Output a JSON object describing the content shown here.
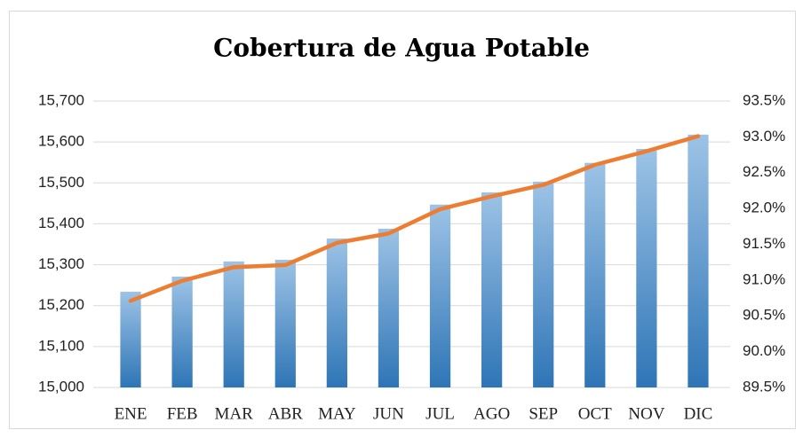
{
  "chart_data": {
    "type": "bar_line",
    "title": "Cobertura de Agua Potable",
    "categories": [
      "ENE",
      "FEB",
      "MAR",
      "ABR",
      "MAY",
      "JUN",
      "JUL",
      "AGO",
      "SEP",
      "OCT",
      "NOV",
      "DIC"
    ],
    "series": [
      {
        "type": "bar",
        "color": "#2e75b6",
        "values": [
          15234,
          15271,
          15308,
          15312,
          15364,
          15388,
          15447,
          15477,
          15503,
          15549,
          15583,
          15618
        ]
      },
      {
        "type": "line",
        "axis": "y2",
        "color": "#ed7d31",
        "values": [
          90.71,
          90.99,
          91.18,
          91.21,
          91.52,
          91.65,
          91.99,
          92.17,
          92.33,
          92.61,
          92.8,
          93.01
        ]
      }
    ],
    "ylim": [
      15000,
      15700
    ],
    "yticks": [
      {
        "value": 15000,
        "label": "15,000"
      },
      {
        "value": 15100,
        "label": "15,100"
      },
      {
        "value": 15200,
        "label": "15,200"
      },
      {
        "value": 15300,
        "label": "15,300"
      },
      {
        "value": 15400,
        "label": "15,400"
      },
      {
        "value": 15500,
        "label": "15,500"
      },
      {
        "value": 15600,
        "label": "15,600"
      },
      {
        "value": 15700,
        "label": "15,700"
      }
    ],
    "y2lim": [
      89.5,
      93.5
    ],
    "y2ticks": [
      {
        "value": 89.5,
        "label": "89.5%"
      },
      {
        "value": 90.0,
        "label": "90.0%"
      },
      {
        "value": 90.5,
        "label": "90.5%"
      },
      {
        "value": 91.0,
        "label": "91.0%"
      },
      {
        "value": 91.5,
        "label": "91.5%"
      },
      {
        "value": 92.0,
        "label": "92.0%"
      },
      {
        "value": 92.5,
        "label": "92.5%"
      },
      {
        "value": 93.0,
        "label": "93.0%"
      },
      {
        "value": 93.5,
        "label": "93.5%"
      }
    ],
    "grid": true
  }
}
